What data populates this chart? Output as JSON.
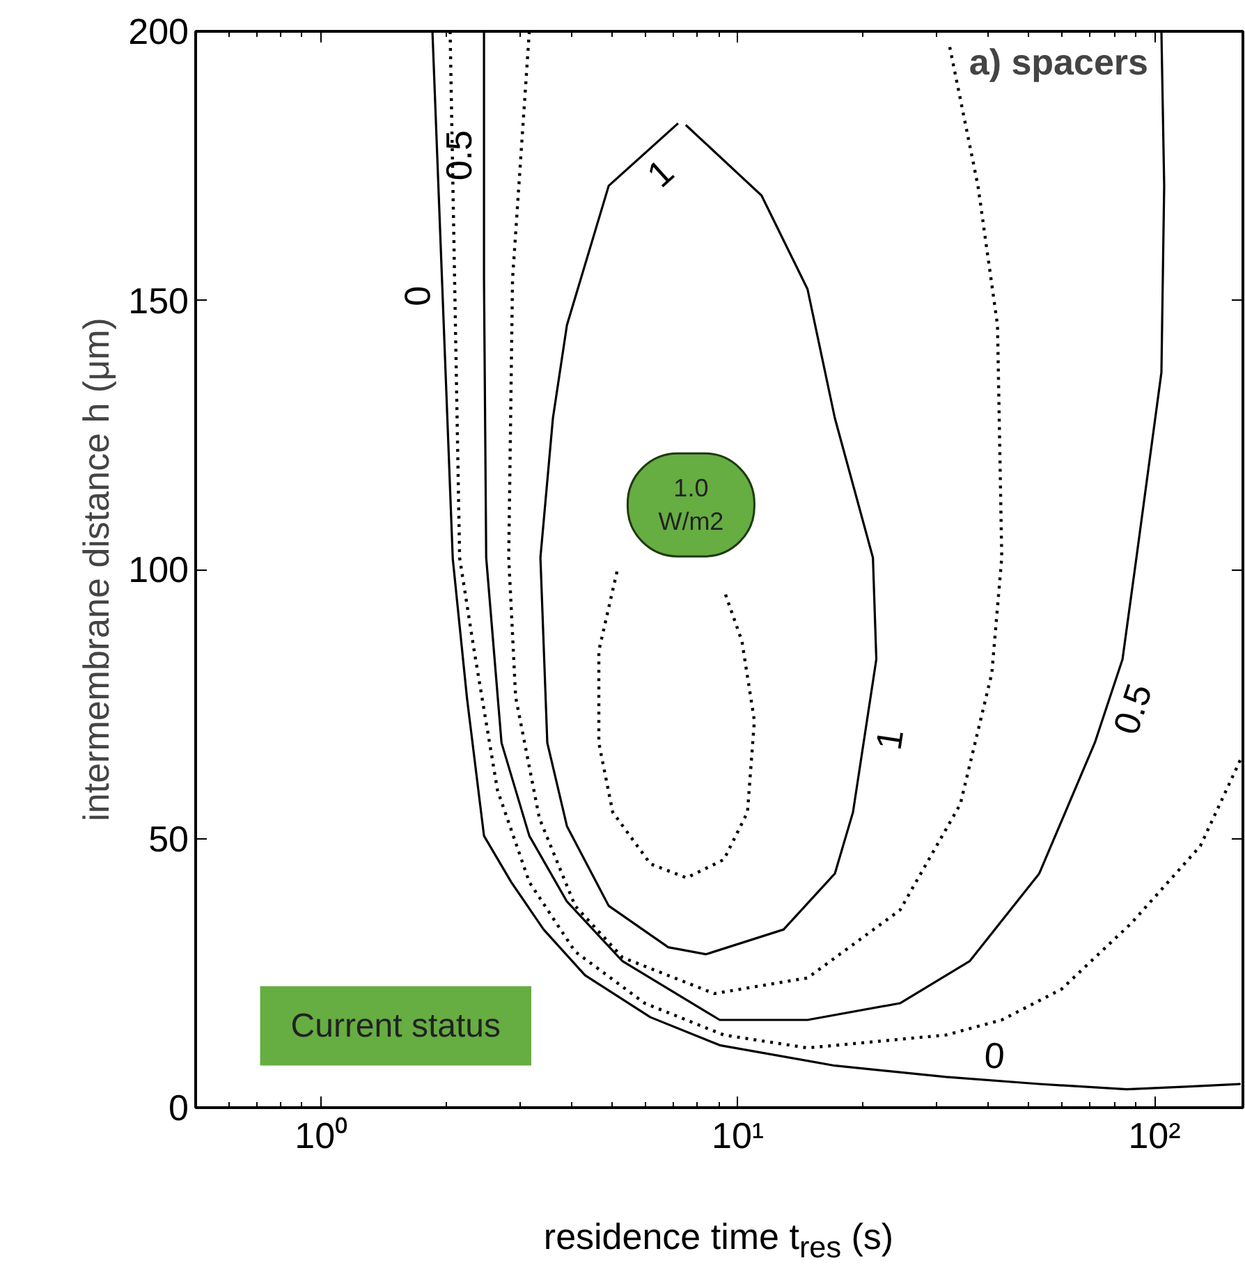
{
  "chart_data": {
    "type": "line",
    "title": "a) spacers",
    "xlabel": "residence time t$_{res}$ (s)",
    "ylabel": "intermembrane distance h (μm)",
    "log": "x",
    "xlim": [
      0.5,
      163
    ],
    "xticks": [
      {
        "value": 1,
        "label": "10⁰"
      },
      {
        "value": 10,
        "label": "10¹"
      },
      {
        "value": 100,
        "label": "10²"
      }
    ],
    "ylim": [
      0,
      200
    ],
    "yticks": [
      0,
      50,
      100,
      150,
      200
    ],
    "grid": false,
    "marker": "none",
    "series": [
      {
        "name": "0",
        "color": "#000000",
        "line_style": "solid",
        "x": [
          1.85,
          2.07,
          2.24,
          2.46,
          2.86,
          3.42,
          4.3,
          6.17,
          9.05,
          17.1,
          31.6,
          52.9,
          85.8,
          119,
          161
        ],
        "values": [
          200,
          102,
          76,
          50.5,
          41.9,
          33.1,
          24.6,
          16.8,
          11.6,
          7.8,
          5.7,
          4.4,
          3.4,
          3.9,
          4.4
        ]
      },
      {
        "color": "#000000",
        "line_style": "dotted",
        "x": [
          2.04,
          2.15,
          2.33,
          2.65,
          3.16,
          4.07,
          5.98,
          9.26,
          14.7,
          31.6,
          43.0,
          59.8,
          87.8,
          128.8,
          160.9
        ],
        "values": [
          200,
          102.2,
          84.9,
          59.0,
          41.9,
          29.0,
          19.4,
          13.5,
          11.1,
          13.5,
          16.3,
          22.0,
          34.2,
          48.6,
          64.7
        ]
      },
      {
        "name": "0.5",
        "color": "#000000",
        "line_style": "solid",
        "x": [
          2.46,
          2.46,
          2.49,
          2.71,
          3.16,
          3.89,
          5.29,
          9.05,
          14.7,
          24.5,
          36.0,
          52.9,
          71.9,
          83.8,
          90.5,
          103.9,
          105.5,
          103.9
        ],
        "values": [
          200,
          153.9,
          102.2,
          67.8,
          50.5,
          38.3,
          27.2,
          16.3,
          16.3,
          19.4,
          27.2,
          43.5,
          67.8,
          83.3,
          102.2,
          136.6,
          171.3,
          200
        ]
      },
      {
        "color": "#000000",
        "line_style": "dotted",
        "x": [
          3.16,
          2.88,
          2.82,
          2.93,
          3.34,
          4.07,
          5.29,
          8.78,
          14.7,
          24.5,
          34.2,
          40.7,
          43.0,
          42.0,
          37.7,
          32.1
        ],
        "values": [
          200,
          153.9,
          102.2,
          76.3,
          53.8,
          37.5,
          27.9,
          21.2,
          24.1,
          36.7,
          56.4,
          80.7,
          102.2,
          145.4,
          171.3,
          197.9
        ]
      },
      {
        "name": "1",
        "color": "#000000",
        "line_style": "solid",
        "x": [
          7.19,
          4.9,
          3.89,
          3.6,
          3.36,
          3.49,
          3.89,
          4.9,
          6.81,
          8.38,
          12.88,
          17.1,
          18.9,
          21.5,
          21.1,
          17.1,
          14.7,
          11.4,
          7.5
        ],
        "values": [
          182.9,
          171.3,
          145.4,
          128.1,
          102.2,
          67.8,
          52.3,
          37.5,
          29.8,
          28.5,
          33.1,
          43.5,
          54.9,
          83.3,
          102.2,
          128.1,
          152.1,
          169.5,
          182.6
        ]
      },
      {
        "color": "#000000",
        "line_style": "dotted",
        "x": [
          5.13,
          4.64,
          4.64,
          5.01,
          6.17,
          7.53,
          9.26,
          10.55,
          10.96,
          10.23,
          9.26
        ],
        "values": [
          99.6,
          84.9,
          67.8,
          54.9,
          45.3,
          42.7,
          46.1,
          54.9,
          71.9,
          86.7,
          96.2
        ]
      }
    ],
    "annotations": [
      "1.0\nW/m2",
      "Current status"
    ]
  }
}
